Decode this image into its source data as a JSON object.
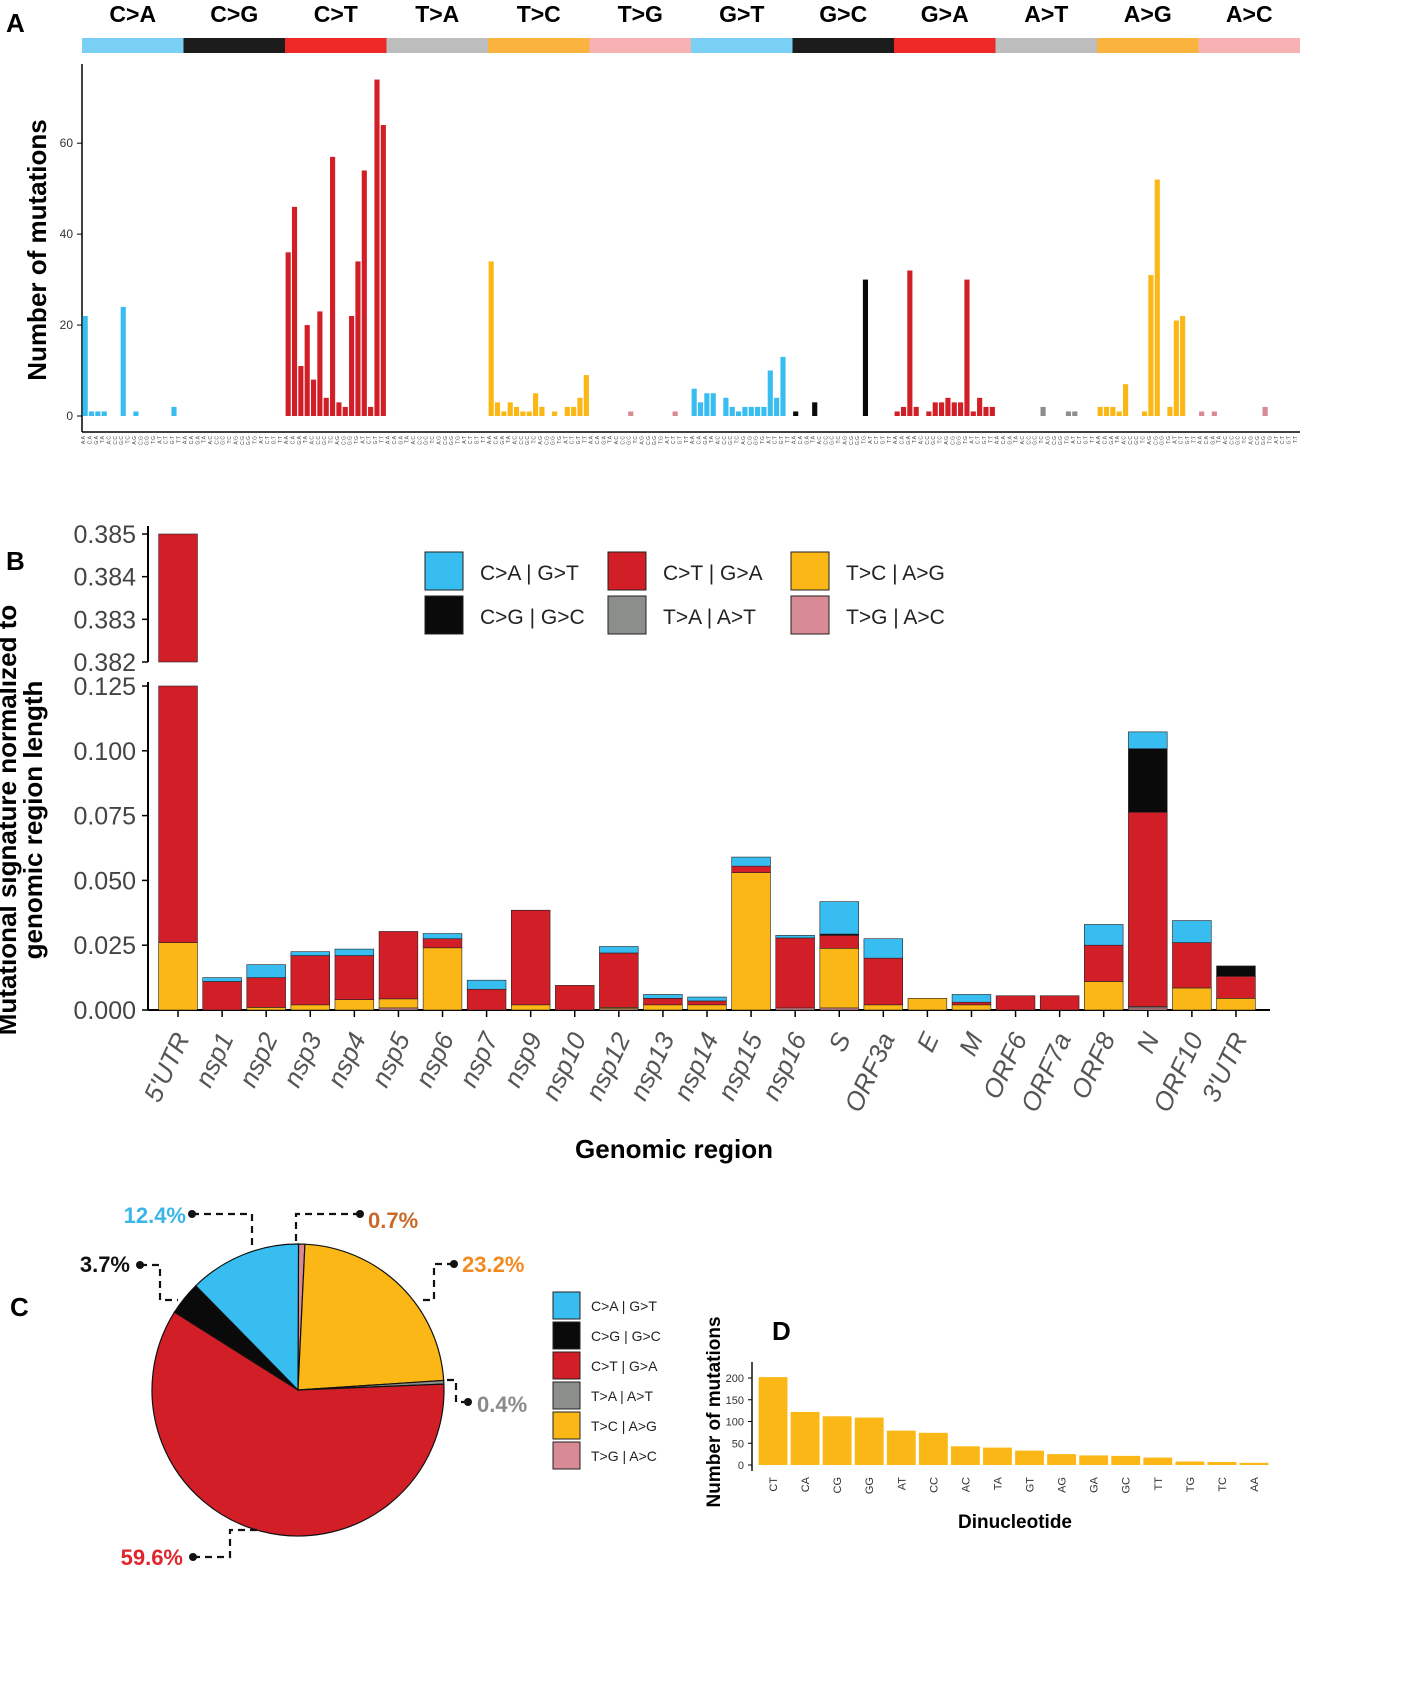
{
  "colors": {
    "CA": "#38bdf0",
    "CG": "#0a0a0a",
    "CT": "#d21f27",
    "TA": "#8c8e8c",
    "TC": "#fbb715",
    "TG": "#d88b95",
    "band_CA": "#79cff4",
    "band_CG": "#1c1c1c",
    "band_CT": "#ee2727",
    "band_TA": "#bdbdbd",
    "band_TC": "#fbb340",
    "band_TG": "#f6b2b2",
    "pct_CA": "#3ab5ea",
    "pct_CG": "#111111",
    "pct_CT": "#e0252c",
    "pct_TA": "#8a8a8a",
    "pct_TC": "#f38a20",
    "pct_TG": "#c8692a"
  },
  "panels": {
    "a": "A",
    "b": "B",
    "c": "C",
    "d": "D"
  },
  "chart_data": [
    {
      "panel": "A",
      "type": "bar",
      "ylabel": "Number of mutations",
      "ylim": [
        0,
        75
      ],
      "yticks": [
        0,
        20,
        40,
        60
      ],
      "groups": [
        {
          "label": "C>A",
          "color_key": "CA"
        },
        {
          "label": "C>G",
          "color_key": "CG"
        },
        {
          "label": "C>T",
          "color_key": "CT"
        },
        {
          "label": "T>A",
          "color_key": "TA"
        },
        {
          "label": "T>C",
          "color_key": "TC"
        },
        {
          "label": "T>G",
          "color_key": "TG"
        },
        {
          "label": "G>T",
          "color_key": "CA"
        },
        {
          "label": "G>C",
          "color_key": "CG"
        },
        {
          "label": "G>A",
          "color_key": "CT"
        },
        {
          "label": "A>T",
          "color_key": "TA"
        },
        {
          "label": "A>G",
          "color_key": "TC"
        },
        {
          "label": "A>C",
          "color_key": "TG"
        }
      ],
      "context_ref": [
        "A",
        "C",
        "G",
        "T",
        "A",
        "C",
        "G",
        "T",
        "A",
        "C",
        "G",
        "T",
        "A",
        "C",
        "G",
        "T"
      ],
      "context_alt": [
        "A",
        "A",
        "A",
        "A",
        "C",
        "C",
        "C",
        "C",
        "G",
        "G",
        "G",
        "G",
        "T",
        "T",
        "T",
        "T"
      ],
      "values": [
        [
          22,
          1,
          1,
          1,
          0,
          0,
          24,
          0,
          1,
          0,
          0,
          0,
          0,
          0,
          2,
          0
        ],
        [
          0,
          0,
          0,
          0,
          0,
          0,
          0,
          0,
          0,
          0,
          0,
          0,
          0,
          0,
          0,
          0
        ],
        [
          36,
          46,
          11,
          20,
          8,
          23,
          4,
          57,
          3,
          2,
          22,
          34,
          54,
          2,
          74,
          64
        ],
        [
          0,
          0,
          0,
          0,
          0,
          0,
          0,
          0,
          0,
          0,
          0,
          0,
          0,
          0,
          0,
          0
        ],
        [
          34,
          3,
          1,
          3,
          2,
          1,
          1,
          5,
          2,
          0,
          1,
          0,
          2,
          2,
          4,
          9
        ],
        [
          0,
          0,
          0,
          0,
          0,
          0,
          1,
          0,
          0,
          0,
          0,
          0,
          0,
          1,
          0,
          0
        ],
        [
          6,
          3,
          5,
          5,
          0,
          4,
          2,
          1,
          2,
          2,
          2,
          2,
          10,
          4,
          13,
          0
        ],
        [
          1,
          0,
          0,
          3,
          0,
          0,
          0,
          0,
          0,
          0,
          0,
          30,
          0,
          0,
          0,
          0
        ],
        [
          1,
          2,
          32,
          2,
          0,
          1,
          3,
          3,
          4,
          3,
          3,
          30,
          1,
          4,
          2,
          2
        ],
        [
          0,
          0,
          0,
          0,
          0,
          0,
          0,
          2,
          0,
          0,
          0,
          1,
          1,
          0,
          0,
          0
        ],
        [
          2,
          2,
          2,
          1,
          7,
          0,
          0,
          1,
          31,
          52,
          0,
          2,
          21,
          22,
          0,
          0
        ],
        [
          1,
          0,
          1,
          0,
          0,
          0,
          0,
          0,
          0,
          0,
          2,
          0,
          0,
          0,
          0,
          0
        ]
      ]
    },
    {
      "panel": "B",
      "type": "bar",
      "stacked": true,
      "ylabel_line1": "Mutational signature normalized to",
      "ylabel_line2": "genomic region length",
      "xlabel": "Genomic region",
      "ylim_lower": [
        0,
        0.125
      ],
      "ylim_upper": [
        0.382,
        0.385
      ],
      "yticks_lower": [
        "0.000",
        "0.025",
        "0.050",
        "0.075",
        "0.100",
        "0.125"
      ],
      "yticks_upper": [
        "0.382",
        "0.383",
        "0.384",
        "0.385"
      ],
      "legend": [
        {
          "key": "CA",
          "label": "C>A | G>T"
        },
        {
          "key": "CT",
          "label": "C>T | G>A"
        },
        {
          "key": "TC",
          "label": "T>C | A>G"
        },
        {
          "key": "CG",
          "label": "C>G | G>C"
        },
        {
          "key": "TA",
          "label": "T>A | A>T"
        },
        {
          "key": "TG",
          "label": "T>G | A>C"
        }
      ],
      "stack_order": [
        "TG",
        "TA",
        "TC",
        "CT",
        "CG",
        "CA"
      ],
      "categories": [
        "5'UTR",
        "nsp1",
        "nsp2",
        "nsp3",
        "nsp4",
        "nsp5",
        "nsp6",
        "nsp7",
        "nsp9",
        "nsp10",
        "nsp12",
        "nsp13",
        "nsp14",
        "nsp15",
        "nsp16",
        "S",
        "ORF3a",
        "E",
        "M",
        "ORF6",
        "ORF7a",
        "ORF8",
        "N",
        "ORF10",
        "3'UTR"
      ],
      "series": [
        {
          "key": "TG",
          "values": [
            0,
            0,
            0,
            0,
            0,
            0.0008,
            0,
            0,
            0,
            0,
            0.0005,
            0,
            0,
            0,
            0.0008,
            0.0008,
            0,
            0,
            0,
            0,
            0,
            0,
            0.0008,
            0,
            0
          ]
        },
        {
          "key": "TA",
          "values": [
            0,
            0,
            0,
            0,
            0,
            0,
            0,
            0,
            0,
            0,
            0,
            0,
            0,
            0,
            0,
            0,
            0,
            0,
            0,
            0,
            0,
            0,
            0.0005,
            0,
            0
          ]
        },
        {
          "key": "TC",
          "values": [
            0.026,
            0,
            0.001,
            0.002,
            0.004,
            0.0035,
            0.024,
            0,
            0.002,
            0,
            0.0005,
            0.002,
            0.002,
            0.053,
            0,
            0.023,
            0.002,
            0.0045,
            0.002,
            0,
            0,
            0.011,
            0,
            0.0085,
            0.0045
          ]
        },
        {
          "key": "CT",
          "values": [
            0.359,
            0.011,
            0.0115,
            0.019,
            0.017,
            0.026,
            0.0035,
            0.008,
            0.0365,
            0.0095,
            0.021,
            0.0025,
            0.0015,
            0.0025,
            0.027,
            0.005,
            0.018,
            0,
            0.001,
            0.0055,
            0.0055,
            0.014,
            0.075,
            0.0175,
            0.0085
          ]
        },
        {
          "key": "CG",
          "values": [
            0,
            0,
            0,
            0,
            0,
            0,
            0,
            0,
            0,
            0,
            0,
            0,
            0,
            0,
            0,
            0.0005,
            0,
            0,
            0,
            0,
            0,
            0,
            0.0245,
            0,
            0.004
          ]
        },
        {
          "key": "CA",
          "values": [
            0,
            0.0015,
            0.005,
            0.0015,
            0.0025,
            0,
            0.002,
            0.0035,
            0,
            0,
            0.0025,
            0.0015,
            0.0015,
            0.0035,
            0.001,
            0.0125,
            0.0075,
            0,
            0.003,
            0,
            0,
            0.008,
            0.0065,
            0.0085,
            0
          ]
        }
      ]
    },
    {
      "panel": "C",
      "type": "pie",
      "slices": [
        {
          "key": "TG",
          "label": "0.7%",
          "value": 0.7
        },
        {
          "key": "TC",
          "label": "23.2%",
          "value": 23.2
        },
        {
          "key": "TA",
          "label": "0.4%",
          "value": 0.4
        },
        {
          "key": "CT",
          "label": "59.6%",
          "value": 59.6
        },
        {
          "key": "CG",
          "label": "3.7%",
          "value": 3.7
        },
        {
          "key": "CA",
          "label": "12.4%",
          "value": 12.4
        }
      ],
      "legend": [
        {
          "key": "CA",
          "label": "C>A | G>T"
        },
        {
          "key": "CG",
          "label": "C>G | G>C"
        },
        {
          "key": "CT",
          "label": "C>T | G>A"
        },
        {
          "key": "TA",
          "label": "T>A | A>T"
        },
        {
          "key": "TC",
          "label": "T>C | A>G"
        },
        {
          "key": "TG",
          "label": "T>G | A>C"
        }
      ]
    },
    {
      "panel": "D",
      "type": "bar",
      "ylabel": "Number of mutations",
      "xlabel": "Dinucleotide",
      "ylim": [
        0,
        210
      ],
      "yticks": [
        0,
        50,
        100,
        150,
        200
      ],
      "categories": [
        "CT",
        "CA",
        "CG",
        "GG",
        "AT",
        "CC",
        "AC",
        "TA",
        "GT",
        "AG",
        "GA",
        "GC",
        "TT",
        "TG",
        "TC",
        "AA"
      ],
      "values": [
        202,
        122,
        112,
        109,
        79,
        74,
        43,
        40,
        33,
        25,
        22,
        21,
        17,
        8,
        7,
        5
      ]
    }
  ]
}
